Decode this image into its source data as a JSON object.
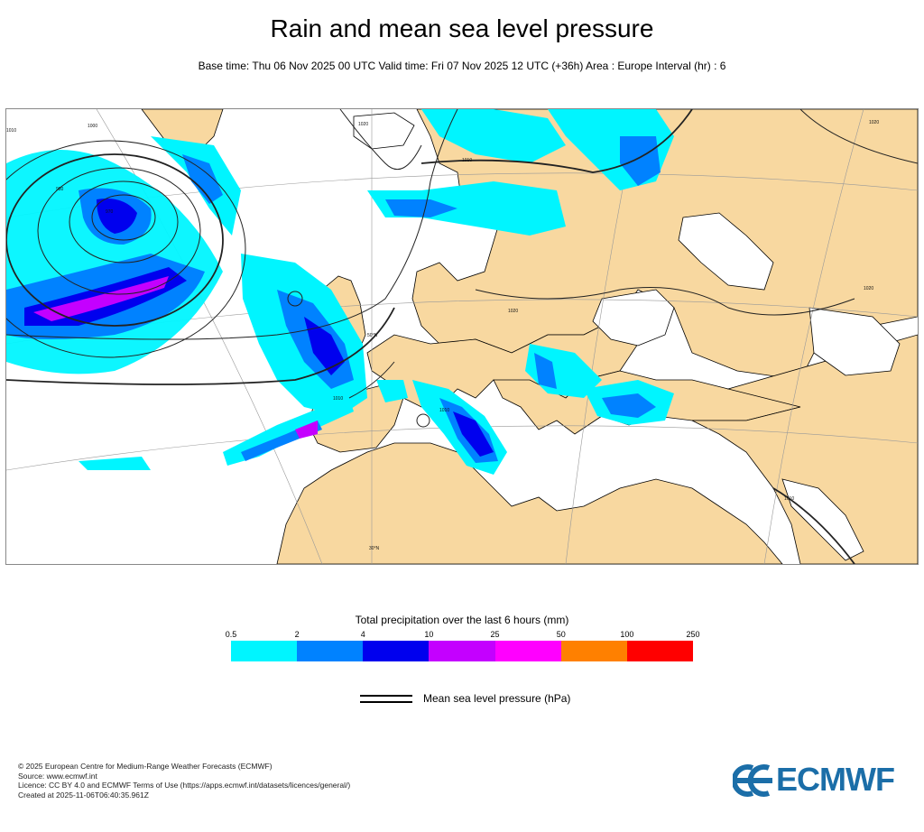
{
  "title": "Rain and mean sea level pressure",
  "subtitle": "Base time: Thu 06 Nov 2025 00 UTC Valid time: Fri 07 Nov 2025 12 UTC (+36h) Area : Europe Interval (hr) : 6",
  "map": {
    "isobar_labels": [
      "1020",
      "1020",
      "1020",
      "1020",
      "1010",
      "1010",
      "1010",
      "1010",
      "1010",
      "1000",
      "980",
      "970"
    ],
    "grid_labels": [
      "50°N",
      "30°N"
    ],
    "colors": {
      "land": "#f8d8a0",
      "sea": "#ffffff",
      "coast": "#000000",
      "isobar": "#333333"
    }
  },
  "legend": {
    "title": "Total precipitation over the last 6 hours (mm)",
    "thresholds": [
      "0.5",
      "2",
      "4",
      "10",
      "25",
      "50",
      "100",
      "250"
    ],
    "colors": [
      "#00f5ff",
      "#0082ff",
      "#0000ee",
      "#c400ff",
      "#ff00ff",
      "#ff8000",
      "#ff0000"
    ]
  },
  "pressure_key": {
    "label": "Mean sea level pressure (hPa)"
  },
  "footer": [
    "© 2025 European Centre for Medium-Range Weather Forecasts (ECMWF)",
    "Source: www.ecmwf.int",
    "Licence: CC BY 4.0 and ECMWF Terms of Use (https://apps.ecmwf.int/datasets/licences/general/)",
    "Created at 2025-11-06T06:40:35.961Z"
  ],
  "logo": {
    "text": "ECMWF",
    "color": "#1b6ea8"
  }
}
